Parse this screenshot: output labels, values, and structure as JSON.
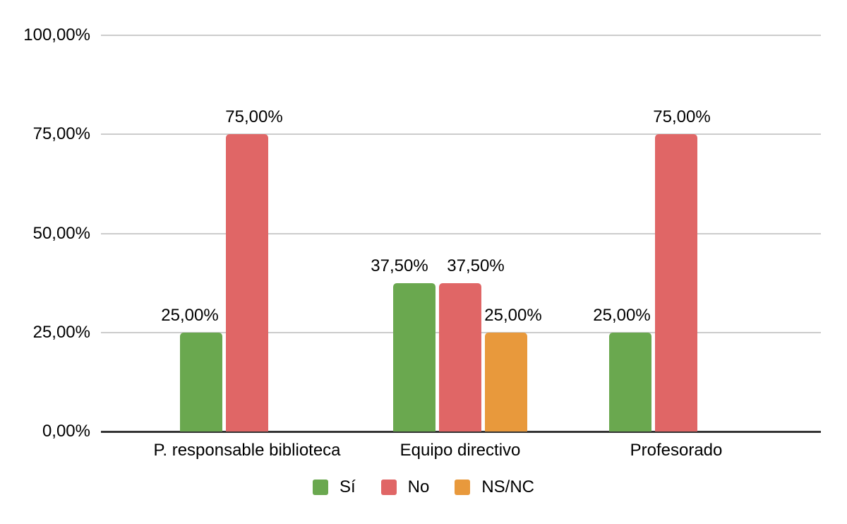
{
  "chart_data": {
    "type": "bar",
    "title": "",
    "categories": [
      "P. responsable biblioteca",
      "Equipo directivo",
      "Profesorado"
    ],
    "series": [
      {
        "name": "Sí",
        "color": "#6aa84f",
        "values": [
          25.0,
          37.5,
          25.0
        ],
        "labels": [
          "25,00%",
          "37,50%",
          "25,00%"
        ]
      },
      {
        "name": "No",
        "color": "#e06666",
        "values": [
          75.0,
          37.5,
          75.0
        ],
        "labels": [
          "75,00%",
          "37,50%",
          "75,00%"
        ]
      },
      {
        "name": "NS/NC",
        "color": "#e8993c",
        "values": [
          0.0,
          25.0,
          0.0
        ],
        "labels": [
          "",
          "25,00%",
          ""
        ]
      }
    ],
    "y_axis": {
      "min": 0,
      "max": 100,
      "tick_values": [
        0,
        25,
        50,
        75,
        100
      ],
      "tick_labels": [
        "0,00%",
        "25,00%",
        "50,00%",
        "75,00%",
        "100,00%"
      ]
    },
    "value_format": "percent-comma-decimal",
    "grid": true,
    "legend_position": "bottom",
    "colors": {
      "grid_line": "#cccccc",
      "axis_line": "#333333",
      "text": "#000000",
      "background": "#ffffff"
    }
  }
}
